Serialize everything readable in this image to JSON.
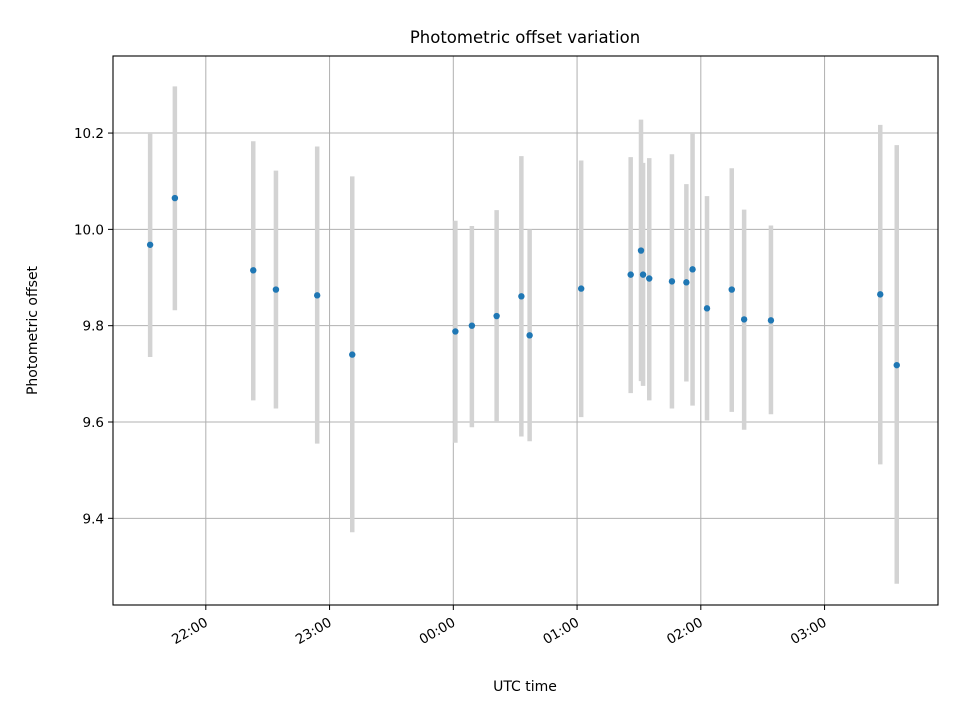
{
  "chart_data": {
    "type": "scatter",
    "title": "Photometric offset variation",
    "xlabel": "UTC time",
    "ylabel": "Photometric offset",
    "x_axis": {
      "kind": "time",
      "start": "2024-01-01T21:15:00",
      "end": "2024-01-02T03:55:00",
      "ticks": [
        {
          "t": "2024-01-01T22:00:00",
          "label": "22:00"
        },
        {
          "t": "2024-01-01T23:00:00",
          "label": "23:00"
        },
        {
          "t": "2024-01-02T00:00:00",
          "label": "00:00"
        },
        {
          "t": "2024-01-02T01:00:00",
          "label": "01:00"
        },
        {
          "t": "2024-01-02T02:00:00",
          "label": "02:00"
        },
        {
          "t": "2024-01-02T03:00:00",
          "label": "03:00"
        }
      ]
    },
    "y_axis": {
      "range": [
        9.22,
        10.36
      ],
      "ticks": [
        {
          "v": 9.4,
          "label": "9.4"
        },
        {
          "v": 9.6,
          "label": "9.6"
        },
        {
          "v": 9.8,
          "label": "9.8"
        },
        {
          "v": 10.0,
          "label": "10.0"
        },
        {
          "v": 10.2,
          "label": "10.2"
        }
      ]
    },
    "grid": true,
    "colors": {
      "point": "#1f77b4",
      "error_bar": "#d3d3d3",
      "grid": "#b0b0b0"
    },
    "points": [
      {
        "t": "2024-01-01T21:33:00",
        "y": 9.968,
        "low": 9.735,
        "high": 10.2
      },
      {
        "t": "2024-01-01T21:45:00",
        "y": 10.065,
        "low": 9.832,
        "high": 10.297
      },
      {
        "t": "2024-01-01T22:23:00",
        "y": 9.915,
        "low": 9.645,
        "high": 10.183
      },
      {
        "t": "2024-01-01T22:34:00",
        "y": 9.875,
        "low": 9.628,
        "high": 10.122
      },
      {
        "t": "2024-01-01T22:54:00",
        "y": 9.863,
        "low": 9.555,
        "high": 10.172
      },
      {
        "t": "2024-01-01T23:11:00",
        "y": 9.74,
        "low": 9.371,
        "high": 10.11
      },
      {
        "t": "2024-01-02T00:01:00",
        "y": 9.788,
        "low": 9.557,
        "high": 10.018
      },
      {
        "t": "2024-01-02T00:09:00",
        "y": 9.8,
        "low": 9.589,
        "high": 10.007
      },
      {
        "t": "2024-01-02T00:21:00",
        "y": 9.82,
        "low": 9.6,
        "high": 10.04
      },
      {
        "t": "2024-01-02T00:33:00",
        "y": 9.861,
        "low": 9.57,
        "high": 10.152
      },
      {
        "t": "2024-01-02T00:37:00",
        "y": 9.78,
        "low": 9.56,
        "high": 10.0
      },
      {
        "t": "2024-01-02T01:02:00",
        "y": 9.877,
        "low": 9.61,
        "high": 10.143
      },
      {
        "t": "2024-01-02T01:26:00",
        "y": 9.906,
        "low": 9.66,
        "high": 10.15
      },
      {
        "t": "2024-01-02T01:31:00",
        "y": 9.956,
        "low": 9.685,
        "high": 10.228
      },
      {
        "t": "2024-01-02T01:32:00",
        "y": 9.906,
        "low": 9.675,
        "high": 10.138
      },
      {
        "t": "2024-01-02T01:35:00",
        "y": 9.898,
        "low": 9.645,
        "high": 10.148
      },
      {
        "t": "2024-01-02T01:46:00",
        "y": 9.892,
        "low": 9.628,
        "high": 10.156
      },
      {
        "t": "2024-01-02T01:53:00",
        "y": 9.89,
        "low": 9.684,
        "high": 10.094
      },
      {
        "t": "2024-01-02T01:56:00",
        "y": 9.917,
        "low": 9.634,
        "high": 10.2
      },
      {
        "t": "2024-01-02T02:03:00",
        "y": 9.836,
        "low": 9.603,
        "high": 10.069
      },
      {
        "t": "2024-01-02T02:15:00",
        "y": 9.875,
        "low": 9.621,
        "high": 10.127
      },
      {
        "t": "2024-01-02T02:21:00",
        "y": 9.813,
        "low": 9.584,
        "high": 10.041
      },
      {
        "t": "2024-01-02T02:34:00",
        "y": 9.811,
        "low": 9.616,
        "high": 10.008
      },
      {
        "t": "2024-01-02T03:27:00",
        "y": 9.865,
        "low": 9.512,
        "high": 10.217
      },
      {
        "t": "2024-01-02T03:35:00",
        "y": 9.718,
        "low": 9.264,
        "high": 10.175
      }
    ]
  }
}
